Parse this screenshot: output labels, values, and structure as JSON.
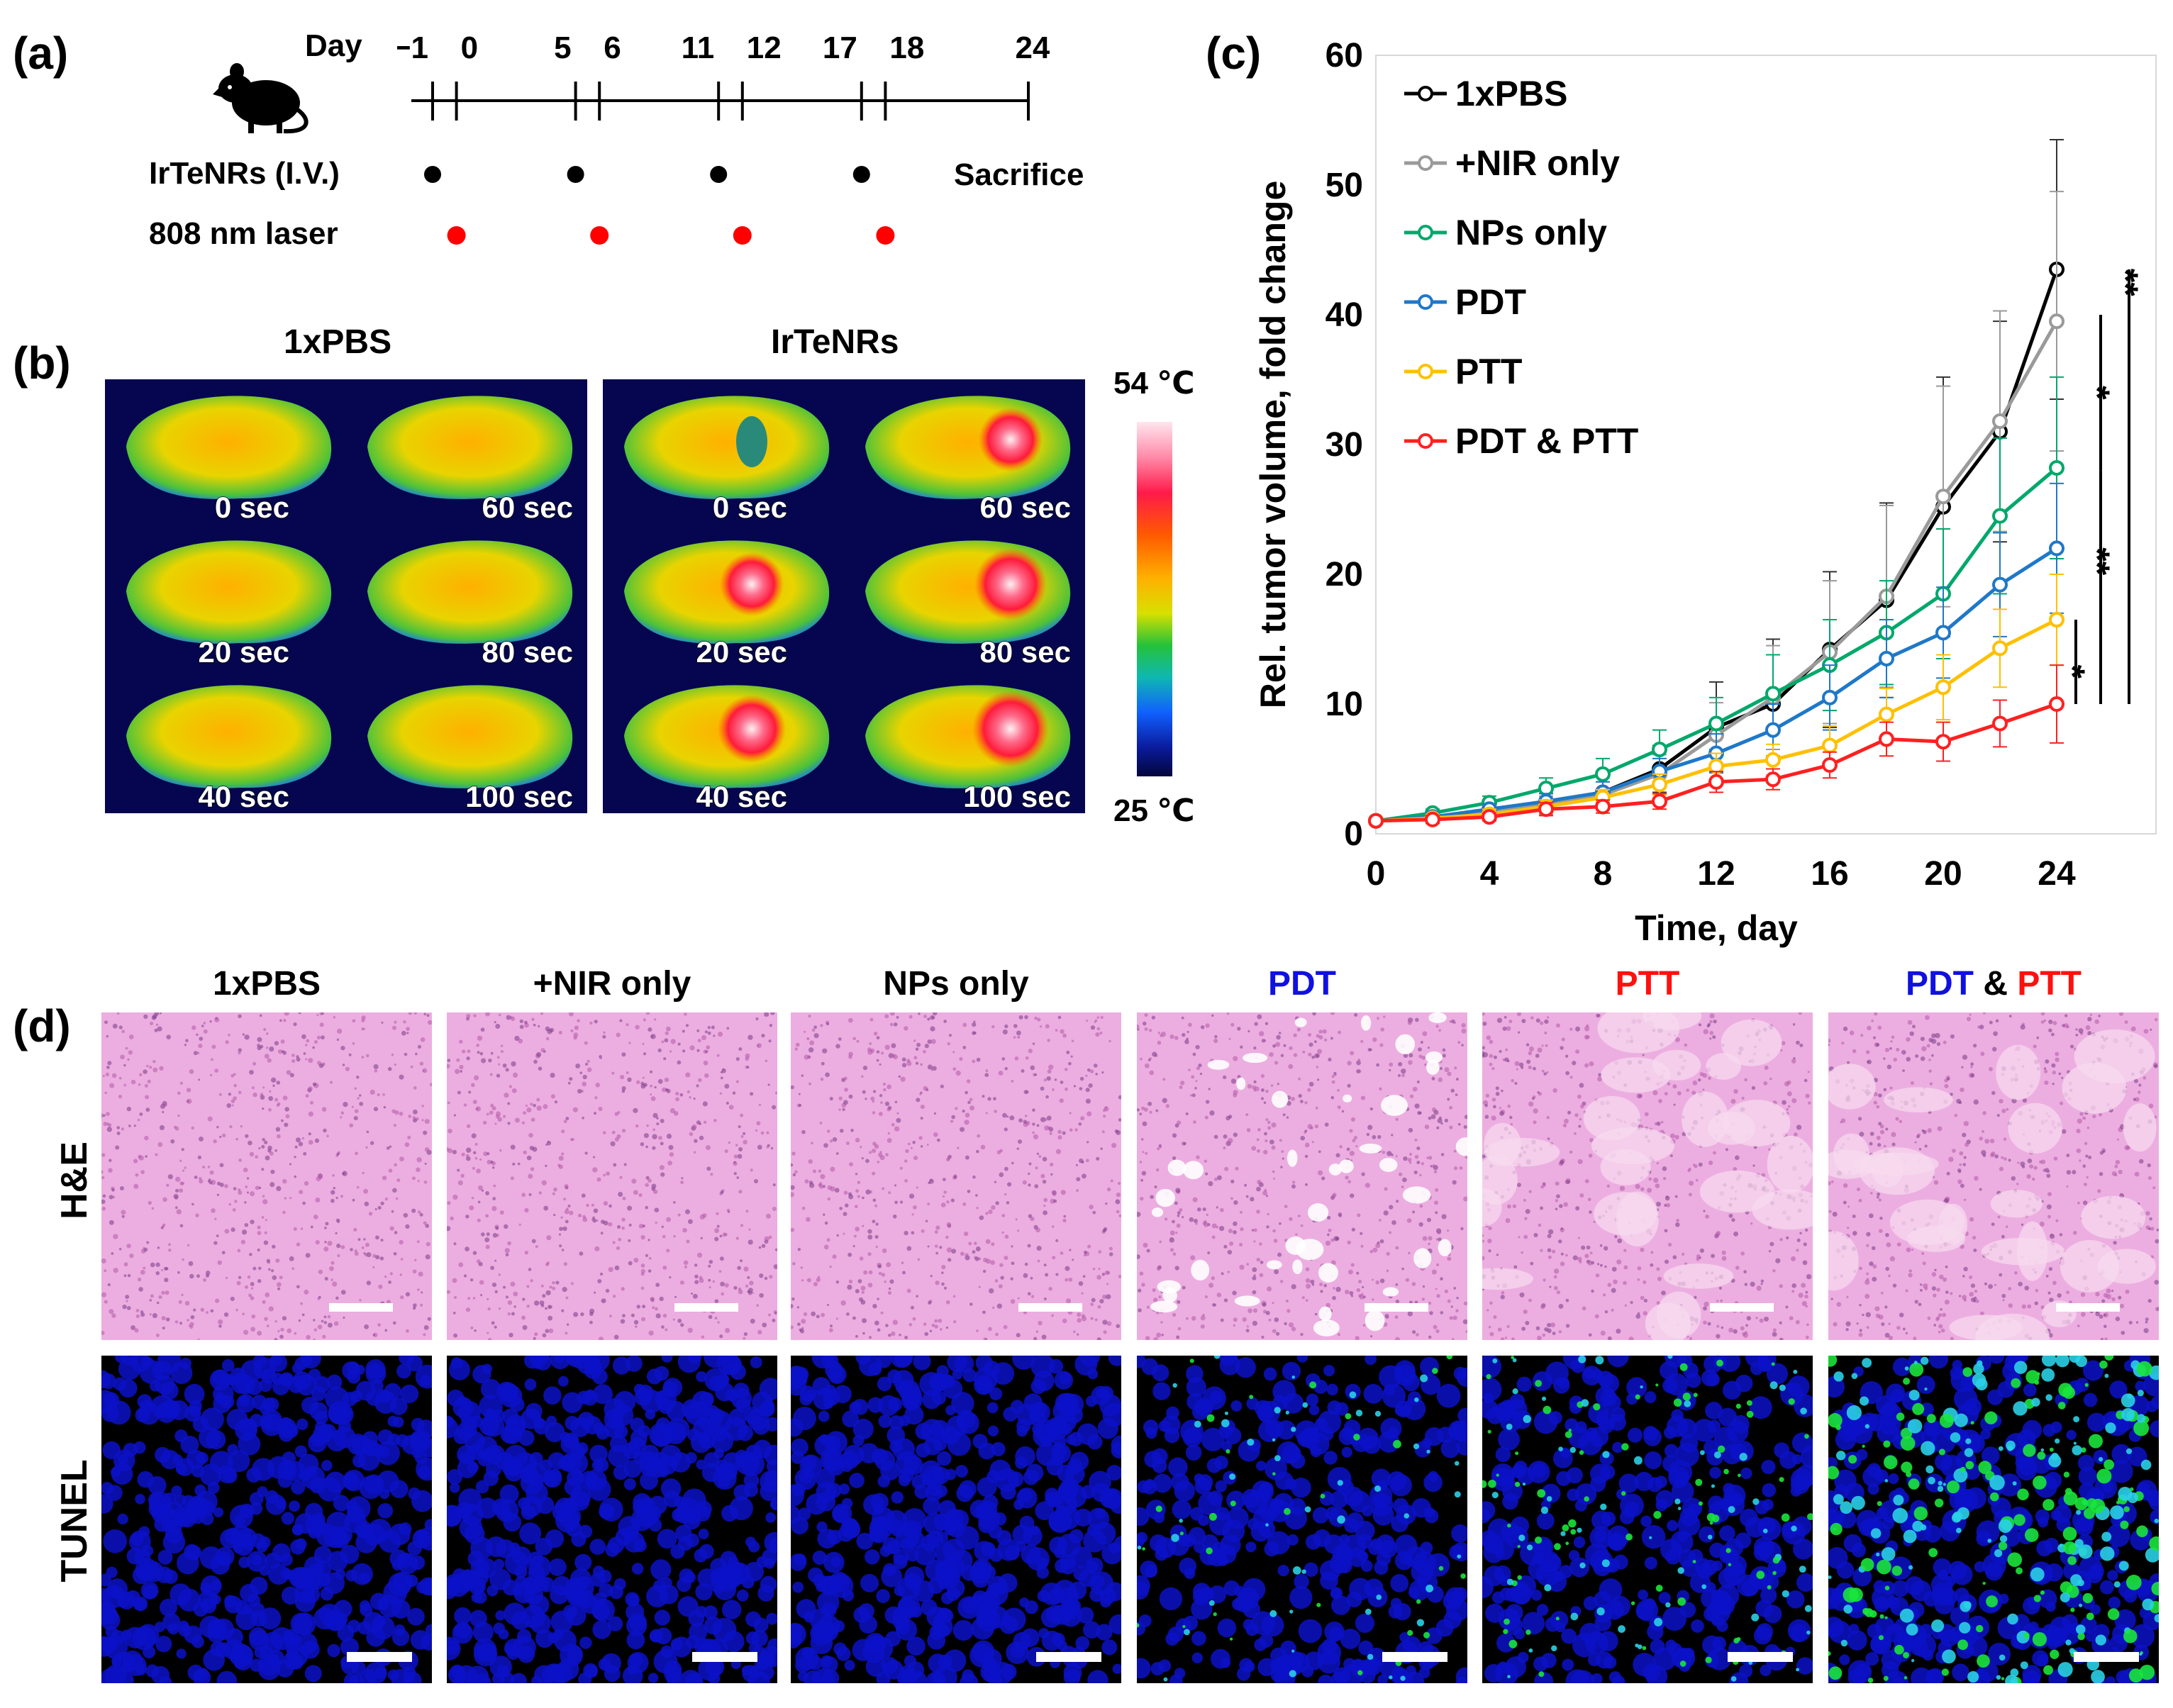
{
  "panels": {
    "a": "(a)",
    "b": "(b)",
    "c": "(c)",
    "d": "(d)"
  },
  "timeline": {
    "day_label": "Day",
    "days": [
      "−1",
      "0",
      "5",
      "6",
      "11",
      "12",
      "17",
      "18",
      "24"
    ],
    "injection_label": "IrTeNRs (I.V.)",
    "laser_label": "808 nm laser",
    "sacrifice_label": "Sacrifice",
    "injection_days": [
      "−1",
      "5",
      "11",
      "17"
    ],
    "laser_days": [
      "0",
      "6",
      "12",
      "18"
    ],
    "injection_color": "#000000",
    "laser_color": "#ff0000"
  },
  "thermal": {
    "group_titles": [
      "1xPBS",
      "IrTeNRs"
    ],
    "time_labels": [
      "0 sec",
      "60 sec",
      "20 sec",
      "80 sec",
      "40 sec",
      "100 sec"
    ],
    "colorbar_max": "54 ℃",
    "colorbar_min": "25 ℃",
    "background_color": "#05064f"
  },
  "chart_data": {
    "type": "line",
    "title": "",
    "xlabel": "Time, day",
    "ylabel": "Rel. tumor volume, fold change",
    "xlim": [
      0,
      24
    ],
    "ylim": [
      0,
      60
    ],
    "xticks": [
      0,
      4,
      8,
      12,
      16,
      20,
      24
    ],
    "yticks": [
      0,
      10,
      20,
      30,
      40,
      50,
      60
    ],
    "x": [
      0,
      2,
      4,
      6,
      8,
      10,
      12,
      14,
      16,
      18,
      20,
      22,
      24
    ],
    "series": [
      {
        "name": "1xPBS",
        "color": "#000000",
        "values": [
          1.0,
          1.3,
          1.8,
          2.3,
          3.2,
          5.0,
          8.2,
          10.0,
          14.2,
          18.0,
          25.2,
          31.0,
          43.5
        ],
        "errors": [
          0,
          0.3,
          0.5,
          0.8,
          1.2,
          1.8,
          3.5,
          5.0,
          6.0,
          7.5,
          10.0,
          8.5,
          10.0
        ]
      },
      {
        "name": "+NIR only",
        "color": "#9a9a9a",
        "values": [
          1.0,
          1.3,
          1.8,
          2.2,
          3.0,
          4.6,
          7.6,
          10.5,
          14.0,
          18.3,
          26.0,
          31.8,
          39.5
        ],
        "errors": [
          0,
          0.3,
          0.5,
          0.7,
          1.0,
          1.5,
          2.5,
          4.0,
          5.5,
          7.0,
          8.5,
          8.5,
          10.0
        ]
      },
      {
        "name": "NPs only",
        "color": "#00a86b",
        "values": [
          1.0,
          1.6,
          2.4,
          3.5,
          4.6,
          6.5,
          8.5,
          10.8,
          13.0,
          15.5,
          18.5,
          24.5,
          28.2
        ],
        "errors": [
          0,
          0.3,
          0.5,
          0.8,
          1.2,
          1.5,
          2.0,
          3.0,
          3.5,
          4.0,
          5.0,
          6.0,
          7.0
        ]
      },
      {
        "name": "PDT",
        "color": "#1f78c8",
        "values": [
          1.0,
          1.3,
          1.9,
          2.5,
          3.2,
          4.8,
          6.2,
          8.0,
          10.5,
          13.5,
          15.5,
          19.2,
          22.0
        ],
        "errors": [
          0,
          0.3,
          0.4,
          0.6,
          0.8,
          1.0,
          1.5,
          2.0,
          2.5,
          3.0,
          3.5,
          4.0,
          5.0
        ]
      },
      {
        "name": "PTT",
        "color": "#ffc000",
        "values": [
          1.0,
          1.2,
          1.5,
          2.1,
          2.8,
          3.8,
          5.2,
          5.7,
          6.8,
          9.2,
          11.3,
          14.3,
          16.5
        ],
        "errors": [
          0,
          0.3,
          0.4,
          0.5,
          0.6,
          0.8,
          1.0,
          1.2,
          1.5,
          2.0,
          2.5,
          3.0,
          3.5
        ]
      },
      {
        "name": "PDT & PTT",
        "color": "#ff2020",
        "values": [
          1.0,
          1.1,
          1.3,
          1.9,
          2.1,
          2.5,
          4.0,
          4.2,
          5.3,
          7.3,
          7.1,
          8.5,
          10.0
        ],
        "errors": [
          0,
          0.3,
          0.3,
          0.5,
          0.5,
          0.6,
          0.8,
          0.8,
          1.0,
          1.3,
          1.5,
          1.8,
          3.0
        ]
      }
    ],
    "significance": [
      "**",
      "*",
      "**",
      "*"
    ],
    "legend_location": "top-left"
  },
  "histology": {
    "groups": [
      {
        "name": "1xPBS",
        "parts": [
          {
            "text": "1xPBS",
            "color": "#000000"
          }
        ]
      },
      {
        "name": "+NIR only",
        "parts": [
          {
            "text": "+NIR only",
            "color": "#000000"
          }
        ]
      },
      {
        "name": "NPs only",
        "parts": [
          {
            "text": "NPs only",
            "color": "#000000"
          }
        ]
      },
      {
        "name": "PDT",
        "parts": [
          {
            "text": "PDT",
            "color": "#1010e0"
          }
        ]
      },
      {
        "name": "PTT",
        "parts": [
          {
            "text": "PTT",
            "color": "#ff1010"
          }
        ]
      },
      {
        "name": "PDT & PTT",
        "parts": [
          {
            "text": "PDT",
            "color": "#1010e0"
          },
          {
            "text": " & ",
            "color": "#000000"
          },
          {
            "text": "PTT",
            "color": "#ff1010"
          }
        ]
      }
    ],
    "row_labels": [
      "H&E",
      "TUNEL"
    ],
    "he_color": "#ecaee0",
    "tunel_color": "#0c12c8",
    "tunel_green_levels": [
      0,
      0,
      0,
      0.25,
      0.45,
      0.85
    ]
  }
}
